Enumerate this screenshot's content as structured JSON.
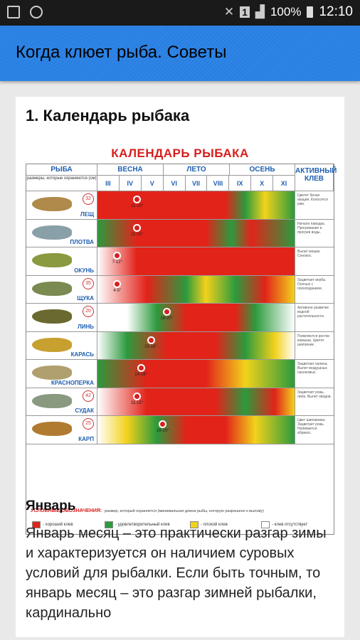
{
  "status_bar": {
    "battery_percent": "100%",
    "time": "12:10",
    "sim": "1"
  },
  "app_bar": {
    "title": "Когда клюет рыба. Советы"
  },
  "article": {
    "heading": "1. Календарь рыбака",
    "calendar": {
      "title": "КАЛЕНДАРЬ РЫБАКА",
      "col_fish": "РЫБА",
      "subhead": "размеры, которые охраняются (см)",
      "seasons": [
        "ВЕСНА",
        "ЛЕТО",
        "ОСЕНЬ"
      ],
      "months": [
        "III",
        "IV",
        "V",
        "VI",
        "VII",
        "VIII",
        "IX",
        "X",
        "XI"
      ],
      "col_active": "АКТИВНЫЙ КЛЕВ",
      "legend_title": "УСЛОВНЫЕ ОБОЗНАЧЕНИЯ:",
      "legend_size_note": "размер, который охраняется (минимальная длина рыбы, которую разрешено к вылову)",
      "legend_items": [
        {
          "label": "хороший клев",
          "color": "#e2231a"
        },
        {
          "label": "удовлетворительный клев",
          "color": "#2c9a3d"
        },
        {
          "label": "плохой клев",
          "color": "#f2d21b"
        },
        {
          "label": "клев отсутствует",
          "color": "#ffffff"
        }
      ],
      "rows": [
        {
          "fish": "ЛЕЩ",
          "size": "32",
          "pin": "11-10°",
          "note": "Цветет белая акация. Колосятся ржи."
        },
        {
          "fish": "ПЛОТВА",
          "size": "",
          "pin": "11-15°",
          "note": "Начало паводка. Прогревание и прогрев воды."
        },
        {
          "fish": "ОКУНЬ",
          "size": "",
          "pin": "7-12°",
          "note": "Вылет мошки. Сенокос."
        },
        {
          "fish": "ЩУКА",
          "size": "35",
          "pin": "4-5°",
          "note": "Зацветает верба. Осенью с похолоданием."
        },
        {
          "fish": "ЛИНЬ",
          "size": "20",
          "pin": "18-20°",
          "note": "Активное развитие водной растительности."
        },
        {
          "fish": "КАРАСЬ",
          "size": "",
          "pin": "15-18°",
          "note": "Появляются ростки камыша. Цветет шиповник."
        },
        {
          "fish": "КРАСНОПЕРКА",
          "size": "",
          "pin": "14-16°",
          "note": "Зацветает калина. Вылет воздушных насекомых."
        },
        {
          "fish": "СУДАК",
          "size": "42",
          "pin": "11-15°",
          "note": "Зацветает рожь, липа. Вылет оводов."
        },
        {
          "fish": "КАРП",
          "size": "25",
          "pin": "18-20°",
          "note": "Цвет шиповника. Зацветает рожь. Наливается абрикос."
        }
      ]
    },
    "subheading": "Январь",
    "paragraph": "Январь месяц – это практически разгар зимы и характеризуется он наличием суровых условий для рыбалки. Если быть точным, то январь месяц – это разгар зимней рыбалки, кардинально"
  }
}
